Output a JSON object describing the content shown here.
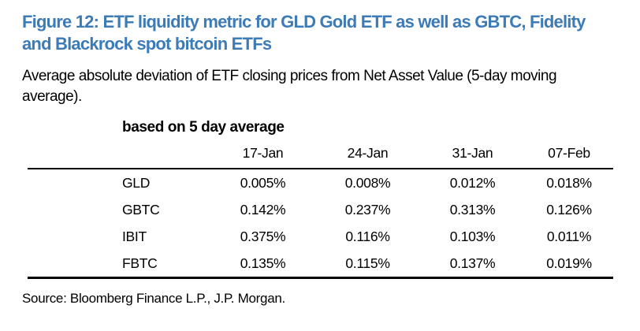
{
  "figure": {
    "title": "Figure 12: ETF liquidity metric for GLD Gold ETF as well as GBTC, Fidelity and Blackrock spot bitcoin ETFs",
    "subtitle": "Average absolute deviation of ETF closing prices from Net Asset Value (5-day moving average).",
    "source": "Source: Bloomberg Finance L.P., J.P. Morgan.",
    "accent_color": "#3D7BB7",
    "text_color": "#000000",
    "rule_color": "#000000"
  },
  "chart_data": {
    "type": "table",
    "title": "based on 5 day average",
    "columns": [
      "17-Jan",
      "24-Jan",
      "31-Jan",
      "07-Feb"
    ],
    "rows": [
      {
        "label": "GLD",
        "values": [
          "0.005%",
          "0.008%",
          "0.012%",
          "0.018%"
        ]
      },
      {
        "label": "GBTC",
        "values": [
          "0.142%",
          "0.237%",
          "0.313%",
          "0.126%"
        ]
      },
      {
        "label": "IBIT",
        "values": [
          "0.375%",
          "0.116%",
          "0.103%",
          "0.011%"
        ]
      },
      {
        "label": "FBTC",
        "values": [
          "0.135%",
          "0.115%",
          "0.137%",
          "0.019%"
        ]
      }
    ],
    "units": "percent deviation of closing price from NAV",
    "layout": {
      "grid": false,
      "rules": "horizontal top and bottom only"
    }
  }
}
